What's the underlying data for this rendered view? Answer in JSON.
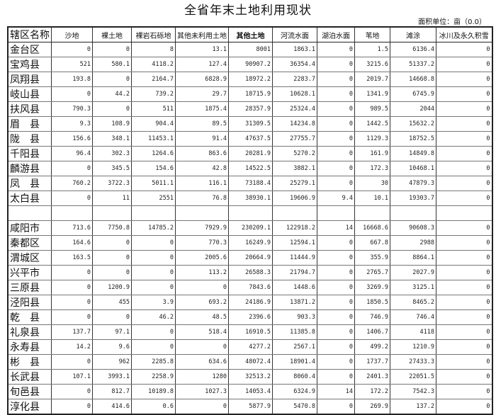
{
  "title": "全省年末土地利用现状",
  "unit": "面积单位：亩（0.0）",
  "columns": [
    "辖区名称",
    "沙地",
    "裸土地",
    "裸岩石砾地",
    "其他未利用土地",
    "其他土地",
    "河流水面",
    "湖泊水面",
    "苇地",
    "滩涂",
    "冰川及永久积雪"
  ],
  "rows": [
    {
      "name": "金台区",
      "values": [
        "0",
        "0",
        "8",
        "13.1",
        "8001",
        "1863.1",
        "0",
        "1.5",
        "6136.4",
        "0"
      ]
    },
    {
      "name": "宝鸡县",
      "values": [
        "521",
        "580.1",
        "4118.2",
        "127.4",
        "90907.2",
        "36354.4",
        "0",
        "3215.6",
        "51337.2",
        "0"
      ]
    },
    {
      "name": "凤翔县",
      "values": [
        "193.8",
        "0",
        "2164.7",
        "6828.9",
        "18972.2",
        "2283.7",
        "0",
        "2019.7",
        "14668.8",
        "0"
      ]
    },
    {
      "name": "岐山县",
      "values": [
        "0",
        "44.2",
        "739.2",
        "29.7",
        "18715.9",
        "10628.1",
        "0",
        "1341.9",
        "6745.9",
        "0"
      ]
    },
    {
      "name": "扶风县",
      "values": [
        "790.3",
        "0",
        "511",
        "1875.4",
        "28357.9",
        "25324.4",
        "0",
        "989.5",
        "2044",
        "0"
      ]
    },
    {
      "name": "眉　县",
      "values": [
        "9.3",
        "108.9",
        "904.4",
        "89.5",
        "31309.5",
        "14234.8",
        "0",
        "1442.5",
        "15632.2",
        "0"
      ]
    },
    {
      "name": "陇　县",
      "values": [
        "156.6",
        "348.1",
        "11453.1",
        "91.4",
        "47637.5",
        "27755.7",
        "0",
        "1129.3",
        "18752.5",
        "0"
      ]
    },
    {
      "name": "千阳县",
      "values": [
        "96.4",
        "302.3",
        "1264.6",
        "863.6",
        "20281.9",
        "5270.2",
        "0",
        "161.9",
        "14849.8",
        "0"
      ]
    },
    {
      "name": "麟游县",
      "values": [
        "0",
        "345.5",
        "154.6",
        "42.8",
        "14522.5",
        "3882.1",
        "0",
        "172.3",
        "10468.1",
        "0"
      ]
    },
    {
      "name": "凤　县",
      "values": [
        "760.2",
        "3722.3",
        "5011.1",
        "116.1",
        "73188.4",
        "25279.1",
        "0",
        "30",
        "47879.3",
        "0"
      ]
    },
    {
      "name": "太白县",
      "values": [
        "0",
        "11",
        "2551",
        "76.8",
        "38930.1",
        "19606.9",
        "9.4",
        "10.1",
        "19303.7",
        "0"
      ]
    },
    {
      "name": "",
      "values": [
        "",
        "",
        "",
        "",
        "",
        "",
        "",
        "",
        "",
        ""
      ]
    },
    {
      "name": "咸阳市",
      "values": [
        "713.6",
        "7750.8",
        "14785.2",
        "7929.9",
        "230209.1",
        "122918.2",
        "14",
        "16668.6",
        "90608.3",
        "0"
      ]
    },
    {
      "name": "秦都区",
      "values": [
        "164.6",
        "0",
        "0",
        "770.3",
        "16249.9",
        "12594.1",
        "0",
        "667.8",
        "2988",
        "0"
      ]
    },
    {
      "name": "渭城区",
      "values": [
        "163.5",
        "0",
        "0",
        "2005.6",
        "20664.9",
        "11444.9",
        "0",
        "355.9",
        "8864.1",
        "0"
      ]
    },
    {
      "name": "兴平市",
      "values": [
        "0",
        "0",
        "0",
        "113.2",
        "26588.3",
        "21794.7",
        "0",
        "2765.7",
        "2027.9",
        "0"
      ]
    },
    {
      "name": "三原县",
      "values": [
        "0",
        "1200.9",
        "0",
        "0",
        "7843.6",
        "1448.6",
        "0",
        "3269.9",
        "3125.1",
        "0"
      ]
    },
    {
      "name": "泾阳县",
      "values": [
        "0",
        "455",
        "3.9",
        "693.2",
        "24186.9",
        "13871.2",
        "0",
        "1850.5",
        "8465.2",
        "0"
      ]
    },
    {
      "name": "乾　县",
      "values": [
        "0",
        "0",
        "46.2",
        "48.5",
        "2396.6",
        "903.3",
        "0",
        "746.9",
        "746.4",
        "0"
      ]
    },
    {
      "name": "礼泉县",
      "values": [
        "137.7",
        "97.1",
        "0",
        "518.4",
        "16910.5",
        "11385.8",
        "0",
        "1406.7",
        "4118",
        "0"
      ]
    },
    {
      "name": "永寿县",
      "values": [
        "14.2",
        "9.6",
        "0",
        "0",
        "4277.2",
        "2567.1",
        "0",
        "499.2",
        "1210.9",
        "0"
      ]
    },
    {
      "name": "彬　县",
      "values": [
        "0",
        "962",
        "2285.8",
        "634.6",
        "48072.4",
        "18901.4",
        "0",
        "1737.7",
        "27433.3",
        "0"
      ]
    },
    {
      "name": "长武县",
      "values": [
        "107.1",
        "3993.1",
        "2258.9",
        "1280",
        "32513.2",
        "8060.4",
        "0",
        "2401.3",
        "22051.5",
        "0"
      ]
    },
    {
      "name": "旬邑县",
      "values": [
        "0",
        "812.7",
        "10189.8",
        "1027.3",
        "14053.4",
        "6324.9",
        "14",
        "172.2",
        "7542.3",
        "0"
      ]
    },
    {
      "name": "淳化县",
      "values": [
        "0",
        "414.6",
        "0.6",
        "0",
        "5877.9",
        "5470.8",
        "0",
        "269.9",
        "137.2",
        "0"
      ]
    }
  ]
}
